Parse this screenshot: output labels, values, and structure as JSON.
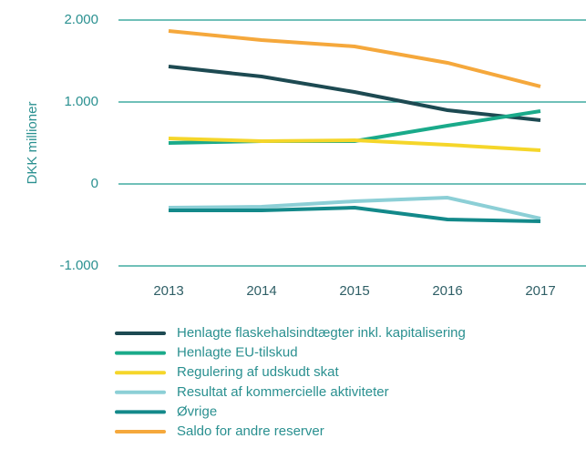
{
  "chart_data": {
    "type": "line",
    "y_label": "DKK millioner",
    "categories": [
      "2013",
      "2014",
      "2015",
      "2016",
      "2017"
    ],
    "series": [
      {
        "name": "Henlagte flaskehalsindtægter inkl. kapitalisering",
        "color": "#1d4a52",
        "values": [
          1433,
          1311,
          1122,
          900,
          778
        ]
      },
      {
        "name": "Henlagte EU-tilskud",
        "color": "#1aaa8a",
        "values": [
          500,
          522,
          522,
          711,
          889
        ]
      },
      {
        "name": "Regulering af udskudt skat",
        "color": "#f5d62a",
        "values": [
          556,
          522,
          533,
          478,
          411
        ]
      },
      {
        "name": "Resultat af kommercielle aktiviteter",
        "color": "#8ccfd6",
        "values": [
          -289,
          -278,
          -211,
          -167,
          -422
        ]
      },
      {
        "name": "Øvrige",
        "color": "#13898a",
        "values": [
          -322,
          -322,
          -289,
          -433,
          -456
        ]
      },
      {
        "name": "Saldo for andre reserver",
        "color": "#f5a83c",
        "values": [
          1867,
          1756,
          1678,
          1478,
          1189
        ]
      }
    ],
    "ylim": [
      -1000,
      2000
    ],
    "yticks": [
      {
        "value": -1000,
        "label": "-1.000"
      },
      0,
      {
        "value": 1000,
        "label": "1.000"
      },
      {
        "value": 2000,
        "label": "2.000"
      }
    ],
    "grid": true
  }
}
